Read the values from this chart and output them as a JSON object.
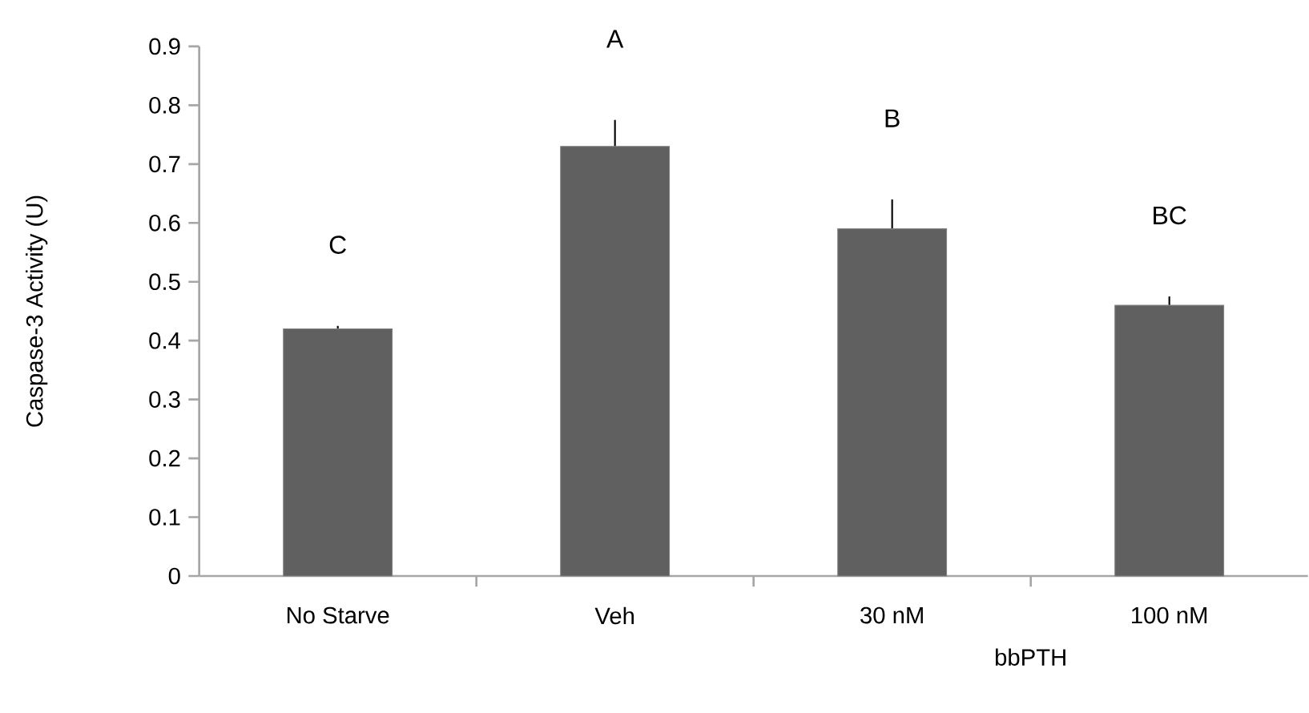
{
  "chart_data": {
    "type": "bar",
    "ylabel": "Caspase-3 Activity (U)",
    "xlabel": "bbPTH",
    "categories": [
      "No Starve",
      "Veh",
      "30 nM",
      "100 nM"
    ],
    "values": [
      0.42,
      0.73,
      0.59,
      0.46
    ],
    "errors": [
      0.005,
      0.045,
      0.05,
      0.015
    ],
    "color": "#606060",
    "ylim": [
      0,
      0.9
    ],
    "yticks": [
      0,
      0.1,
      0.2,
      0.3,
      0.4,
      0.5,
      0.6,
      0.7,
      0.8,
      0.9
    ],
    "annotations": [
      "C",
      "A",
      "B",
      "BC"
    ],
    "grid": false
  }
}
